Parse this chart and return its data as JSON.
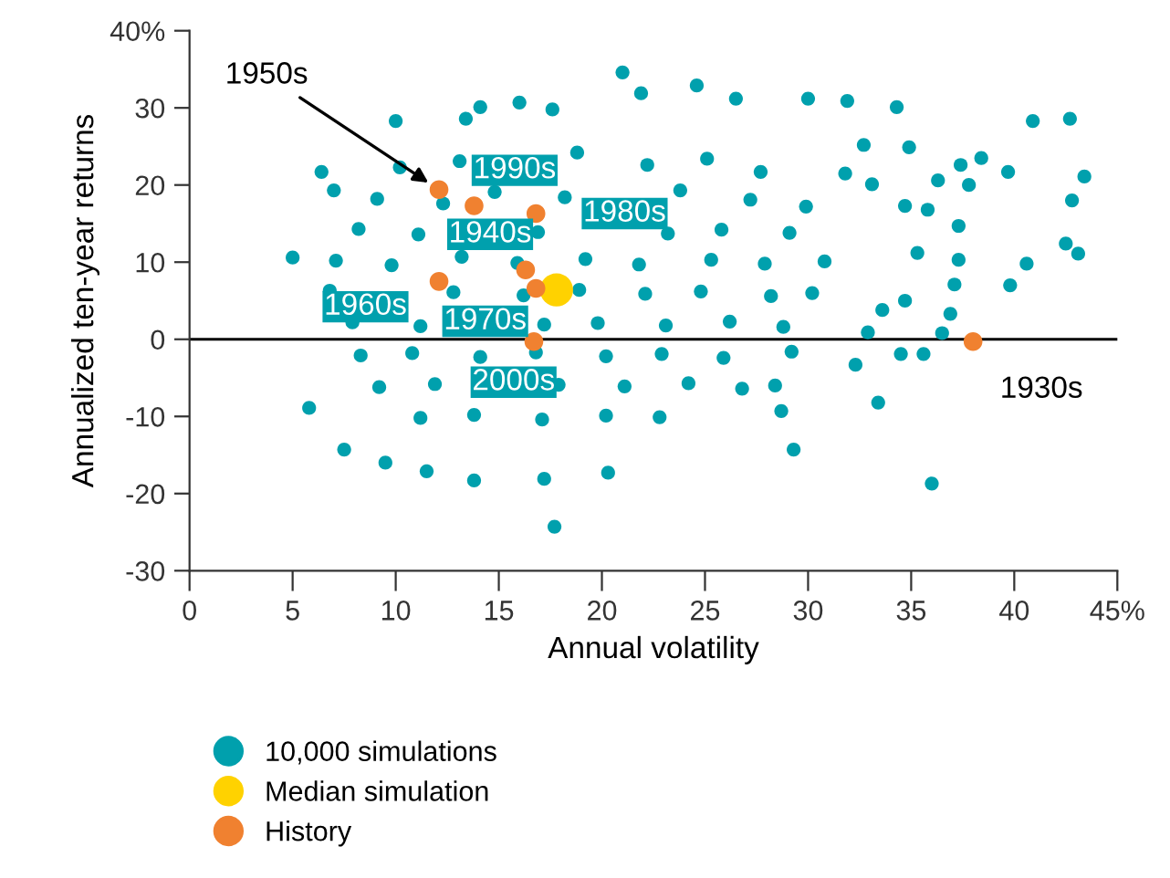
{
  "chart_data": {
    "type": "scatter",
    "xlabel": "Annual volatility",
    "ylabel": "Annualized ten-year returns",
    "xlim": [
      0,
      45
    ],
    "xticks": [
      0,
      5,
      10,
      15,
      20,
      25,
      30,
      35,
      40,
      {
        "value": 45,
        "label": "45%"
      }
    ],
    "ylim": [
      -30,
      40
    ],
    "yticks": [
      -30,
      -20,
      -10,
      0,
      10,
      20,
      30,
      {
        "value": 40,
        "label": "40%"
      }
    ],
    "grid": false,
    "legend": "bottom",
    "marker": "circle",
    "ref_lines": [
      {
        "axis": "y",
        "value": 0,
        "color": "#000000"
      }
    ],
    "series": [
      {
        "name": "10,000 simulations",
        "color": "#00a0ad",
        "x": [
          21.0,
          24.6,
          21.9,
          26.5,
          30.0,
          31.9,
          34.3,
          40.9,
          42.7,
          43.4,
          42.8,
          42.5,
          43.1,
          40.6,
          39.8,
          39.7,
          38.4,
          37.4,
          37.8,
          36.3,
          37.3,
          37.3,
          37.1,
          36.9,
          36.5,
          36.0,
          33.4,
          35.6,
          34.5,
          32.3,
          29.3,
          28.7,
          28.4,
          17.7,
          20.3,
          17.2,
          13.8,
          11.5,
          9.5,
          7.5,
          5.8,
          5.0,
          6.4,
          7.0,
          10.0,
          13.4,
          14.1,
          16.0,
          17.6,
          34.9,
          32.7,
          34.7,
          35.8,
          35.3,
          34.7,
          33.6,
          32.9,
          33.1,
          31.8,
          10.2,
          13.1,
          18.8,
          22.2,
          25.1,
          27.7,
          9.1,
          12.3,
          14.8,
          18.2,
          23.8,
          27.2,
          29.9,
          8.2,
          11.1,
          16.9,
          23.2,
          25.8,
          29.1,
          7.1,
          9.8,
          13.2,
          15.9,
          19.2,
          21.8,
          25.3,
          27.9,
          30.8,
          6.8,
          12.8,
          16.2,
          18.9,
          22.1,
          24.8,
          28.2,
          30.2,
          7.9,
          11.2,
          17.2,
          19.8,
          23.1,
          26.2,
          28.8,
          8.3,
          10.8,
          14.1,
          16.8,
          20.2,
          22.9,
          25.9,
          29.2,
          9.2,
          11.9,
          17.9,
          21.1,
          24.2,
          26.8,
          11.2,
          13.8,
          17.1,
          20.2,
          22.8
        ],
        "values": [
          34.6,
          32.9,
          31.9,
          31.2,
          31.2,
          30.9,
          30.1,
          28.3,
          28.6,
          21.1,
          18.0,
          12.4,
          11.1,
          9.8,
          7.0,
          21.7,
          23.5,
          22.6,
          20.0,
          20.6,
          14.7,
          10.3,
          7.1,
          3.3,
          0.8,
          -18.7,
          -8.2,
          -1.9,
          -1.9,
          -3.3,
          -14.3,
          -9.3,
          -6.0,
          -24.3,
          -17.3,
          -18.1,
          -18.3,
          -17.1,
          -16.0,
          -14.3,
          -8.9,
          10.6,
          21.7,
          19.3,
          28.3,
          28.6,
          30.1,
          30.7,
          29.8,
          24.9,
          25.2,
          17.3,
          16.8,
          11.2,
          5.0,
          3.8,
          0.9,
          20.1,
          21.5,
          22.3,
          23.1,
          24.2,
          22.6,
          23.4,
          21.7,
          18.2,
          17.6,
          19.1,
          18.4,
          19.3,
          18.1,
          17.2,
          14.3,
          13.6,
          13.9,
          13.7,
          14.2,
          13.8,
          10.2,
          9.6,
          10.7,
          9.9,
          10.4,
          9.7,
          10.3,
          9.8,
          10.1,
          6.3,
          6.1,
          5.7,
          6.4,
          5.9,
          6.2,
          5.6,
          6.0,
          2.2,
          1.7,
          1.9,
          2.1,
          1.8,
          2.3,
          1.6,
          -2.1,
          -1.8,
          -2.3,
          -1.7,
          -2.2,
          -1.9,
          -2.4,
          -1.6,
          -6.2,
          -5.8,
          -5.9,
          -6.1,
          -5.7,
          -6.4,
          -10.2,
          -9.8,
          -10.4,
          -9.9,
          -10.1
        ]
      },
      {
        "name": "Median simulation",
        "color": "#ffd200",
        "x": [
          17.8
        ],
        "values": [
          6.4
        ]
      },
      {
        "name": "History",
        "color": "#f08130",
        "x": [
          12.1,
          13.8,
          16.8,
          16.3,
          12.1,
          16.8,
          16.7,
          38.0
        ],
        "values": [
          19.4,
          17.3,
          16.3,
          9.0,
          7.5,
          6.6,
          -0.3,
          -0.3
        ]
      }
    ],
    "annotations": [
      {
        "text": "1950s",
        "x": 12.1,
        "y": 19.4
      },
      {
        "text": "1990s",
        "x": 13.8,
        "y": 17.3
      },
      {
        "text": "1980s",
        "x": 16.8,
        "y": 16.3
      },
      {
        "text": "1940s",
        "x": 16.3,
        "y": 9.0
      },
      {
        "text": "1960s",
        "x": 12.1,
        "y": 7.5
      },
      {
        "text": "1970s",
        "x": 16.8,
        "y": 6.6
      },
      {
        "text": "2000s",
        "x": 16.7,
        "y": -0.3
      },
      {
        "text": "1930s",
        "x": 38.0,
        "y": -0.3
      }
    ]
  }
}
